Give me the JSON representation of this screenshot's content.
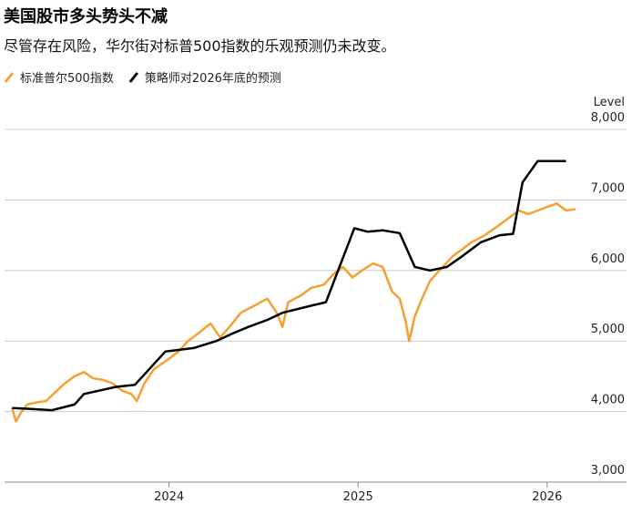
{
  "chart_data": {
    "type": "line",
    "title": "美国股市多头势头不减",
    "subtitle": "尽管存在风险，华尔街对标普500指数的乐观预测仍未改变。",
    "y_label": "Level",
    "xlim": [
      2023.13,
      2026.42
    ],
    "xticks": [
      2024,
      2025,
      2026
    ],
    "ylim": [
      3000,
      8000
    ],
    "yticks": [
      {
        "value": 3000,
        "label": "3,000"
      },
      {
        "value": 4000,
        "label": "4,000"
      },
      {
        "value": 5000,
        "label": "5,000"
      },
      {
        "value": 6000,
        "label": "6,000"
      },
      {
        "value": 7000,
        "label": "7,000"
      },
      {
        "value": 8000,
        "label": "8,000"
      }
    ],
    "grid": true,
    "series": [
      {
        "name": "标准普尔500指数",
        "color": "#f5a030",
        "x": [
          2023.17,
          2023.19,
          2023.22,
          2023.25,
          2023.3,
          2023.35,
          2023.4,
          2023.45,
          2023.5,
          2023.55,
          2023.6,
          2023.65,
          2023.7,
          2023.75,
          2023.8,
          2023.83,
          2023.87,
          2023.92,
          2024.0,
          2024.05,
          2024.1,
          2024.15,
          2024.22,
          2024.27,
          2024.32,
          2024.38,
          2024.45,
          2024.52,
          2024.57,
          2024.6,
          2024.63,
          2024.7,
          2024.75,
          2024.82,
          2024.87,
          2024.92,
          2024.97,
          2025.02,
          2025.08,
          2025.13,
          2025.18,
          2025.22,
          2025.25,
          2025.27,
          2025.3,
          2025.33,
          2025.38,
          2025.43,
          2025.5,
          2025.55,
          2025.6,
          2025.67,
          2025.75,
          2025.8,
          2025.85,
          2025.9,
          2025.95,
          2026.0,
          2026.05,
          2026.1,
          2026.15
        ],
        "values": [
          4050,
          3860,
          4000,
          4100,
          4130,
          4150,
          4280,
          4400,
          4500,
          4560,
          4470,
          4450,
          4400,
          4300,
          4250,
          4150,
          4400,
          4600,
          4750,
          4850,
          5000,
          5100,
          5250,
          5050,
          5200,
          5400,
          5500,
          5600,
          5400,
          5200,
          5550,
          5650,
          5750,
          5800,
          5950,
          6050,
          5900,
          6000,
          6100,
          6050,
          5700,
          5600,
          5300,
          5000,
          5350,
          5550,
          5850,
          6000,
          6200,
          6300,
          6400,
          6500,
          6650,
          6750,
          6850,
          6800,
          6850,
          6900,
          6950,
          6850,
          6870
        ]
      },
      {
        "name": "策略师对2026年底的预测",
        "color": "#000000",
        "x": [
          2023.17,
          2023.25,
          2023.38,
          2023.5,
          2023.55,
          2023.72,
          2023.82,
          2023.98,
          2024.13,
          2024.25,
          2024.33,
          2024.42,
          2024.52,
          2024.6,
          2024.75,
          2024.83,
          2024.98,
          2025.05,
          2025.13,
          2025.22,
          2025.3,
          2025.38,
          2025.47,
          2025.55,
          2025.65,
          2025.75,
          2025.82,
          2025.87,
          2025.95,
          2026.1
        ],
        "values": [
          4050,
          4040,
          4020,
          4100,
          4250,
          4350,
          4380,
          4850,
          4900,
          5000,
          5100,
          5200,
          5300,
          5400,
          5500,
          5550,
          6600,
          6550,
          6570,
          6530,
          6050,
          6000,
          6050,
          6200,
          6400,
          6500,
          6520,
          7250,
          7550,
          7550
        ]
      }
    ]
  }
}
